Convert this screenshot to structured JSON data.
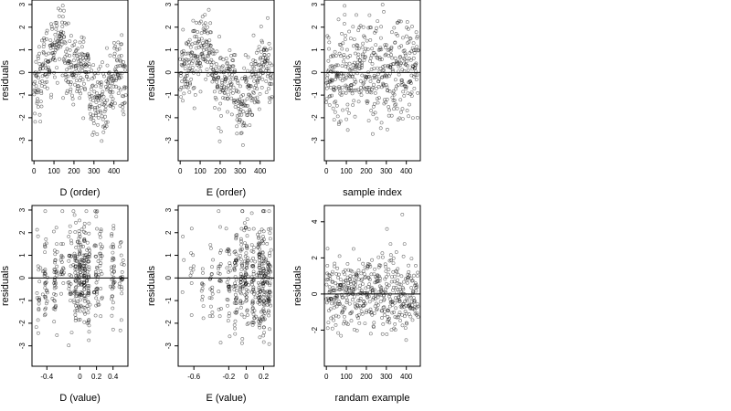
{
  "chart_data": [
    {
      "type": "scatter",
      "xlabel": "D (order)",
      "ylabel": "residuals",
      "xlim": [
        -10,
        470
      ],
      "ylim": [
        -3.9,
        3.2
      ],
      "xticks": [
        0,
        100,
        200,
        300,
        400
      ],
      "yticks": [
        -3,
        -2,
        -1,
        0,
        1,
        2,
        3
      ],
      "hline": 0,
      "pattern": "ordered",
      "points": []
    },
    {
      "type": "scatter",
      "xlabel": "E (order)",
      "ylabel": "residuals",
      "xlim": [
        -10,
        470
      ],
      "ylim": [
        -3.9,
        3.2
      ],
      "xticks": [
        0,
        100,
        200,
        300,
        400
      ],
      "yticks": [
        -3,
        -2,
        -1,
        0,
        1,
        2,
        3
      ],
      "hline": 0,
      "pattern": "ordered",
      "points": []
    },
    {
      "type": "scatter",
      "xlabel": "sample index",
      "ylabel": "residuals",
      "xlim": [
        -10,
        470
      ],
      "ylim": [
        -3.9,
        3.2
      ],
      "xticks": [
        0,
        100,
        200,
        300,
        400
      ],
      "yticks": [
        -3,
        -2,
        -1,
        0,
        1,
        2,
        3
      ],
      "hline": 0,
      "pattern": "random",
      "points": []
    },
    {
      "type": "scatter",
      "xlabel": "D (value)",
      "ylabel": "residuals",
      "xlim": [
        -0.58,
        0.58
      ],
      "ylim": [
        -3.9,
        3.2
      ],
      "xticks": [
        -0.4,
        0.0,
        0.2,
        0.4
      ],
      "yticks": [
        -3,
        -2,
        -1,
        0,
        1,
        2,
        3
      ],
      "hline": 0,
      "pattern": "vertical-bands",
      "points": []
    },
    {
      "type": "scatter",
      "xlabel": "E (value)",
      "ylabel": "residuals",
      "xlim": [
        -0.78,
        0.32
      ],
      "ylim": [
        -3.9,
        3.2
      ],
      "xticks": [
        -0.6,
        -0.2,
        0.0,
        0.2
      ],
      "yticks": [
        -3,
        -2,
        -1,
        0,
        1,
        2,
        3
      ],
      "hline": 0,
      "pattern": "vertical-bands",
      "points": []
    },
    {
      "type": "scatter",
      "xlabel": "randam example",
      "ylabel": "residuals",
      "xlim": [
        -10,
        470
      ],
      "ylim": [
        -4.0,
        4.9
      ],
      "xticks": [
        0,
        100,
        200,
        300,
        400
      ],
      "yticks": [
        -2,
        0,
        2,
        4
      ],
      "hline": 0,
      "pattern": "random",
      "points": []
    }
  ]
}
